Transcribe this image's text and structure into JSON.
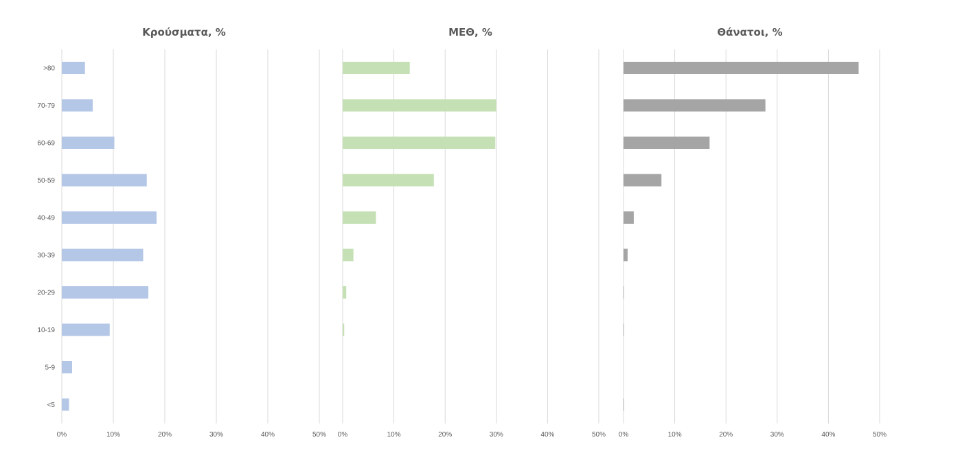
{
  "chart_data": [
    {
      "type": "bar",
      "orientation": "horizontal",
      "title": "Κρούσματα, %",
      "color": "#b4c7e7",
      "categories": [
        ">80",
        "70-79",
        "60-69",
        "50-59",
        "40-49",
        "30-39",
        "20-29",
        "10-19",
        "5-9",
        "<5"
      ],
      "values": [
        4.5,
        6.0,
        10.2,
        16.5,
        18.4,
        15.8,
        16.8,
        9.3,
        2.0,
        1.4
      ],
      "xlim": [
        0,
        50
      ],
      "xticks": [
        "0%",
        "10%",
        "20%",
        "30%",
        "40%",
        "50%"
      ],
      "grid": true
    },
    {
      "type": "bar",
      "orientation": "horizontal",
      "title": "ΜΕΘ, %",
      "color": "#c5e0b4",
      "categories": [
        ">80",
        "70-79",
        "60-69",
        "50-59",
        "40-49",
        "30-39",
        "20-29",
        "10-19",
        "5-9",
        "<5"
      ],
      "values": [
        13.1,
        30.0,
        29.8,
        17.8,
        6.5,
        2.1,
        0.7,
        0.3,
        0.0,
        0.0
      ],
      "xlim": [
        0,
        50
      ],
      "xticks": [
        "0%",
        "10%",
        "20%",
        "30%",
        "40%",
        "50%"
      ],
      "grid": true
    },
    {
      "type": "bar",
      "orientation": "horizontal",
      "title": "Θάνατοι, %",
      "color": "#a5a5a5",
      "categories": [
        ">80",
        "70-79",
        "60-69",
        "50-59",
        "40-49",
        "30-39",
        "20-29",
        "10-19",
        "5-9",
        "<5"
      ],
      "values": [
        45.9,
        27.7,
        16.8,
        7.4,
        2.0,
        0.8,
        0.1,
        0.1,
        0.0,
        0.1
      ],
      "xlim": [
        0,
        50
      ],
      "xticks": [
        "0%",
        "10%",
        "20%",
        "30%",
        "40%",
        "50%"
      ],
      "grid": true
    }
  ]
}
